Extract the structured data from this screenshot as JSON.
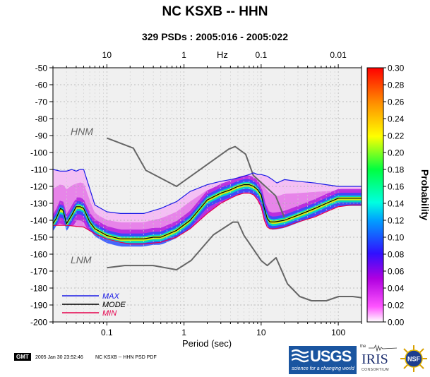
{
  "header": {
    "title": "NC KSXB -- HHN",
    "subtitle": "329 PSDs : 2005:016 - 2005:022"
  },
  "footer": {
    "gmt_label": "GMT",
    "timestamp": "2005 Jan 30 23:52:46",
    "caption": "NC KSXB -- HHN PSD PDF"
  },
  "logos": {
    "usgs_word": "USGS",
    "usgs_tagline": "science for a changing world",
    "iris_prefix": "the",
    "iris_word": "IRIS",
    "iris_sub": "CONSORTIUM",
    "nsf_word": "NSF"
  },
  "colors": {
    "hnm_lnm": "#666666",
    "max": "#1a1ae6",
    "mode": "#000000",
    "min": "#e6004c"
  },
  "chart_data": {
    "type": "heatmap",
    "xlabel": "Period (sec)",
    "x_scale": "log",
    "xlim": [
      0.02,
      200
    ],
    "x_ticks": [
      0.1,
      1,
      10,
      100
    ],
    "x_tick_labels": [
      "0.1",
      "1",
      "10",
      "100"
    ],
    "top_axis_unit": "Hz",
    "top_ticks": [
      10,
      1,
      0.1,
      0.01
    ],
    "top_tick_labels": [
      "10",
      "1",
      "0.1",
      "0.01"
    ],
    "ylim": [
      -200,
      -50
    ],
    "y_ticks": [
      -200,
      -190,
      -180,
      -170,
      -160,
      -150,
      -140,
      -130,
      -120,
      -110,
      -100,
      -90,
      -80,
      -70,
      -60,
      -50
    ],
    "y_tick_labels": [
      "-200",
      "-190",
      "-180",
      "-170",
      "-160",
      "-150",
      "-140",
      "-130",
      "-120",
      "-110",
      "-100",
      "-90",
      "-80",
      "-70",
      "-60",
      "-50"
    ],
    "colorbar": {
      "label": "Probability",
      "range": [
        0,
        0.3
      ],
      "ticks": [
        0,
        0.02,
        0.04,
        0.06,
        0.08,
        0.1,
        0.12,
        0.14,
        0.16,
        0.18,
        0.2,
        0.22,
        0.24,
        0.26,
        0.28,
        0.3
      ],
      "tick_labels": [
        "0.00",
        "0.02",
        "0.04",
        "0.06",
        "0.08",
        "0.10",
        "0.12",
        "0.14",
        "0.16",
        "0.18",
        "0.20",
        "0.22",
        "0.24",
        "0.26",
        "0.28",
        "0.30"
      ]
    },
    "annotations": [
      "HNM",
      "LNM"
    ],
    "legend": {
      "placement": "bottom-left",
      "entries": [
        "MAX",
        "MODE",
        "MIN"
      ]
    },
    "series": [
      {
        "name": "HNM",
        "x": [
          0.1,
          0.22,
          0.32,
          0.8,
          3.8,
          4.6,
          6.3,
          7.9,
          15.4,
          20
        ],
        "y": [
          -91.5,
          -97.4,
          -110.5,
          -120,
          -98,
          -96.5,
          -101,
          -113.5,
          -125.5,
          -138.5
        ]
      },
      {
        "name": "LNM",
        "x": [
          0.1,
          0.17,
          0.4,
          0.8,
          1.24,
          2.4,
          4.3,
          5,
          6,
          10,
          12,
          15.6,
          21.9,
          31.6,
          45,
          70,
          101,
          154,
          200
        ],
        "y": [
          -168,
          -166.7,
          -166.7,
          -169.2,
          -163.7,
          -148.6,
          -141.1,
          -141.1,
          -149,
          -163.8,
          -166.7,
          -162.1,
          -177.5,
          -185,
          -187.5,
          -187.5,
          -185,
          -185,
          -185.7
        ]
      },
      {
        "name": "MAX",
        "x": [
          0.02,
          0.025,
          0.03,
          0.035,
          0.04,
          0.045,
          0.05,
          0.07,
          0.1,
          0.15,
          0.2,
          0.3,
          0.5,
          0.8,
          1.2,
          2,
          3,
          4,
          5,
          6,
          7,
          8,
          9,
          10,
          12,
          14,
          16,
          20,
          30,
          50,
          70,
          100,
          150,
          200
        ],
        "y": [
          -110,
          -111,
          -111,
          -110,
          -111,
          -110,
          -110,
          -131,
          -135,
          -136,
          -136,
          -136,
          -133,
          -129,
          -123,
          -119,
          -117,
          -116,
          -115,
          -114,
          -113,
          -112,
          -113,
          -113,
          -114,
          -116,
          -118,
          -116,
          -117,
          -118,
          -119,
          -120,
          -120,
          -120
        ]
      },
      {
        "name": "MODE",
        "x": [
          0.02,
          0.022,
          0.025,
          0.027,
          0.03,
          0.035,
          0.04,
          0.045,
          0.05,
          0.06,
          0.07,
          0.1,
          0.15,
          0.2,
          0.3,
          0.4,
          0.5,
          0.8,
          1.2,
          2,
          3,
          4,
          5,
          6,
          7,
          8,
          9,
          10,
          11,
          12,
          13,
          15,
          20,
          30,
          50,
          70,
          100,
          150,
          200
        ],
        "y": [
          -142,
          -139,
          -133,
          -134,
          -142,
          -137,
          -132,
          -132,
          -133,
          -141,
          -145,
          -149,
          -151,
          -151,
          -151,
          -150,
          -150,
          -146,
          -140,
          -128,
          -124,
          -122,
          -120,
          -119,
          -119,
          -120,
          -122,
          -125,
          -133,
          -139,
          -141,
          -141,
          -140,
          -137,
          -133,
          -130,
          -127,
          -127,
          -127
        ]
      },
      {
        "name": "MIN",
        "x": [
          0.02,
          0.03,
          0.05,
          0.07,
          0.1,
          0.15,
          0.2,
          0.3,
          0.5,
          0.8,
          1.2,
          2,
          3,
          4,
          5,
          6,
          7,
          8,
          9,
          10,
          11,
          12,
          13,
          15,
          20,
          30,
          50,
          70,
          100,
          150,
          200
        ],
        "y": [
          -143,
          -143,
          -144,
          -148,
          -151,
          -153,
          -154,
          -154,
          -153,
          -150,
          -145,
          -136,
          -130,
          -127,
          -125,
          -124,
          -124,
          -125,
          -128,
          -132,
          -140,
          -144,
          -145,
          -145,
          -144,
          -141,
          -138,
          -135,
          -132,
          -131,
          -131
        ]
      }
    ]
  }
}
